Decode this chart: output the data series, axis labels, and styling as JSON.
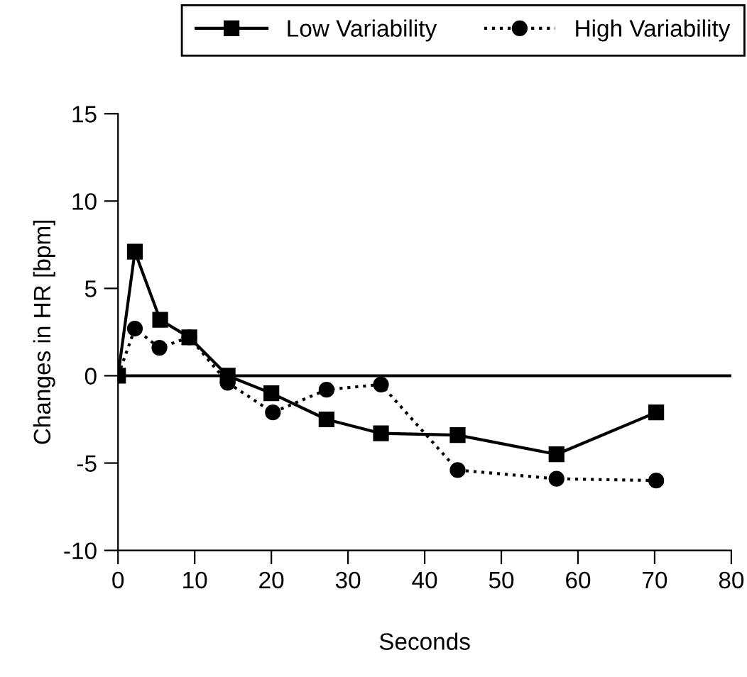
{
  "chart_data": {
    "type": "line",
    "xlabel": "Seconds",
    "ylabel": "Changes in HR [bpm]",
    "xlim": [
      0,
      80
    ],
    "xticks": [
      0,
      10,
      20,
      30,
      40,
      50,
      60,
      70,
      80
    ],
    "ylim": [
      -10,
      15
    ],
    "yticks": [
      -10,
      -5,
      0,
      5,
      10,
      15
    ],
    "grid": false,
    "legend": "top right",
    "series": [
      {
        "name": "Low Variability",
        "color": "#000000",
        "marker": "square",
        "line_style": "solid",
        "x": [
          0,
          2.2,
          5.5,
          9.3,
          14.3,
          20,
          27.2,
          34.3,
          44.3,
          57.2,
          70.2
        ],
        "values": [
          0,
          7.1,
          3.2,
          2.2,
          0,
          -1,
          -2.5,
          -3.3,
          -3.4,
          -4.5,
          -2.1
        ]
      },
      {
        "name": "High Variability",
        "color": "#000000",
        "marker": "circle",
        "line_style": "dotted",
        "x": [
          0,
          2.2,
          5.4,
          9.3,
          14.3,
          20.2,
          27.2,
          34.3,
          44.3,
          57.2,
          70.2
        ],
        "values": [
          0,
          2.7,
          1.6,
          2.2,
          -0.4,
          -2.1,
          -0.8,
          -0.5,
          -5.4,
          -5.9,
          -6.0
        ]
      }
    ],
    "ref_lines": [
      {
        "axis": "y",
        "value": 0,
        "color": "#000000",
        "line_style": "solid"
      }
    ]
  }
}
